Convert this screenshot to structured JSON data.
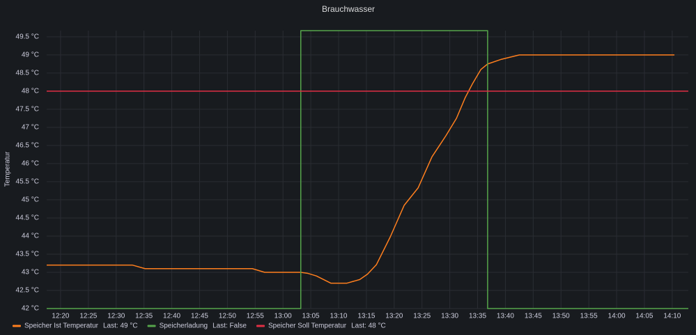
{
  "chart_data": {
    "type": "line",
    "title": "Brauchwasser",
    "y_label": "Temperatur",
    "grid": true,
    "xlim": [
      737.5,
      852.9
    ],
    "xticks": [
      {
        "value": 740,
        "label": "12:20"
      },
      {
        "value": 745,
        "label": "12:25"
      },
      {
        "value": 750,
        "label": "12:30"
      },
      {
        "value": 755,
        "label": "12:35"
      },
      {
        "value": 760,
        "label": "12:40"
      },
      {
        "value": 765,
        "label": "12:45"
      },
      {
        "value": 770,
        "label": "12:50"
      },
      {
        "value": 775,
        "label": "12:55"
      },
      {
        "value": 780,
        "label": "13:00"
      },
      {
        "value": 785,
        "label": "13:05"
      },
      {
        "value": 790,
        "label": "13:10"
      },
      {
        "value": 795,
        "label": "13:15"
      },
      {
        "value": 800,
        "label": "13:20"
      },
      {
        "value": 805,
        "label": "13:25"
      },
      {
        "value": 810,
        "label": "13:30"
      },
      {
        "value": 815,
        "label": "13:35"
      },
      {
        "value": 820,
        "label": "13:40"
      },
      {
        "value": 825,
        "label": "13:45"
      },
      {
        "value": 830,
        "label": "13:50"
      },
      {
        "value": 835,
        "label": "13:55"
      },
      {
        "value": 840,
        "label": "14:00"
      },
      {
        "value": 845,
        "label": "14:05"
      },
      {
        "value": 850,
        "label": "14:10"
      }
    ],
    "ylim": [
      42,
      49.67
    ],
    "yticks": [
      {
        "value": 42,
        "label": "42 °C"
      },
      {
        "value": 42.5,
        "label": "42.5 °C"
      },
      {
        "value": 43,
        "label": "43 °C"
      },
      {
        "value": 43.5,
        "label": "43.5 °C"
      },
      {
        "value": 44,
        "label": "44 °C"
      },
      {
        "value": 44.5,
        "label": "44.5 °C"
      },
      {
        "value": 45,
        "label": "45 °C"
      },
      {
        "value": 45.5,
        "label": "45.5 °C"
      },
      {
        "value": 46,
        "label": "46 °C"
      },
      {
        "value": 46.5,
        "label": "46.5 °C"
      },
      {
        "value": 47,
        "label": "47 °C"
      },
      {
        "value": 47.5,
        "label": "47.5 °C"
      },
      {
        "value": 48,
        "label": "48 °C"
      },
      {
        "value": 48.5,
        "label": "48.5 °C"
      },
      {
        "value": 49,
        "label": "49 °C"
      },
      {
        "value": 49.5,
        "label": "49.5 °C"
      }
    ],
    "y2lim": [
      0,
      1
    ],
    "series": [
      {
        "name": "Speicher Ist Temperatur",
        "last_label": "Last: 49 °C",
        "color": "#ff7f1e",
        "x": [
          737.5,
          752.9,
          755.2,
          774.5,
          776.7,
          783.2,
          784.5,
          786.0,
          788.6,
          791.5,
          793.8,
          795.2,
          796.8,
          799.3,
          801.8,
          804.3,
          806.8,
          809.3,
          811.2,
          812.8,
          814.1,
          815.6,
          816.8,
          819.3,
          822.5,
          850.4
        ],
        "values": [
          43.2,
          43.2,
          43.1,
          43.1,
          43.0,
          43.0,
          42.97,
          42.9,
          42.7,
          42.7,
          42.8,
          42.95,
          43.21,
          43.98,
          44.85,
          45.33,
          46.19,
          46.77,
          47.25,
          47.83,
          48.21,
          48.6,
          48.75,
          48.88,
          49.0,
          49.0
        ]
      },
      {
        "name": "Speicherladung",
        "last_label": "Last: False",
        "color": "#56a64b",
        "axis": "y2",
        "x": [
          737.5,
          783.2,
          783.2,
          816.8,
          816.8,
          852.9
        ],
        "values": [
          0,
          0,
          1,
          1,
          0,
          0
        ]
      },
      {
        "name": "Speicher Soll Temperatur",
        "last_label": "Last: 48 °C",
        "color": "#e02f44",
        "x": [
          737.5,
          852.9
        ],
        "values": [
          48,
          48
        ]
      }
    ]
  }
}
